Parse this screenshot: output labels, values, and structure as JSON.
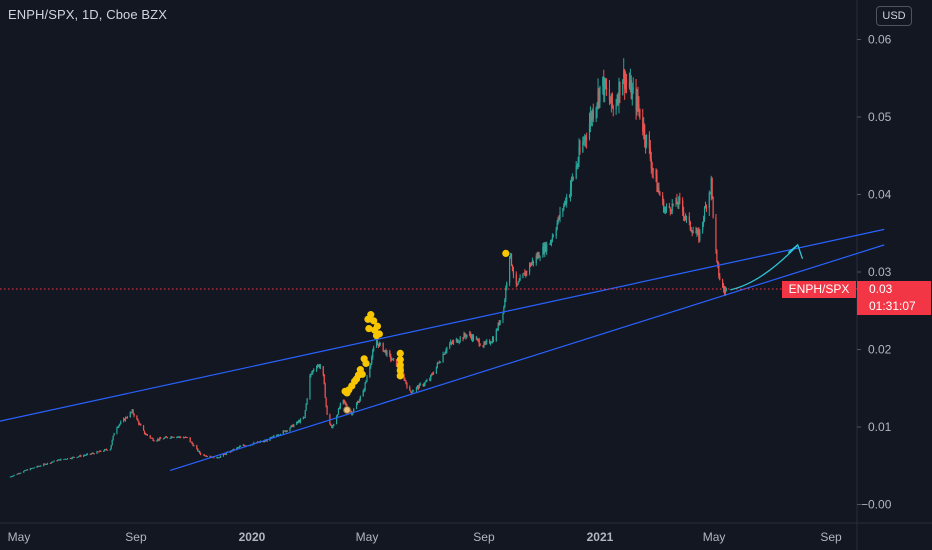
{
  "header": {
    "title": "ENPH/SPX, 1D, Cboe BZX",
    "currency_button": "USD"
  },
  "price_tag": {
    "symbol": "ENPH/SPX",
    "last_value": "0.03",
    "countdown": "01:31:07"
  },
  "colors": {
    "background": "#131722",
    "up": "#26a69a",
    "down": "#ef5350",
    "trendline": "#2962ff",
    "annotation": "#f7c600",
    "last_price": "#f23645"
  },
  "chart_data": {
    "type": "candlestick",
    "symbol": "ENPH/SPX",
    "interval": "1D",
    "exchange": "Cboe BZX",
    "y_ticks": [
      "0.06",
      "0.05",
      "0.04",
      "0.03",
      "0.02",
      "0.01",
      "0.00"
    ],
    "y_tick_values": [
      0.06,
      0.05,
      0.04,
      0.03,
      0.02,
      0.01,
      0.0
    ],
    "ylim": [
      -0.002,
      0.064
    ],
    "x_ticks": [
      {
        "label": "May",
        "date": "2019-05-01"
      },
      {
        "label": "Sep",
        "date": "2019-09-01"
      },
      {
        "label": "2020",
        "date": "2020-01-01"
      },
      {
        "label": "May",
        "date": "2020-05-01"
      },
      {
        "label": "Sep",
        "date": "2020-09-01"
      },
      {
        "label": "2021",
        "date": "2021-01-01"
      },
      {
        "label": "May",
        "date": "2021-05-01"
      },
      {
        "label": "Sep",
        "date": "2021-09-01"
      }
    ],
    "last_price": 0.0278,
    "price_path": [
      [
        "2019-04-20",
        0.0035
      ],
      [
        "2019-05-10",
        0.0045
      ],
      [
        "2019-06-10",
        0.0057
      ],
      [
        "2019-07-15",
        0.0065
      ],
      [
        "2019-08-05",
        0.0072
      ],
      [
        "2019-08-10",
        0.0098
      ],
      [
        "2019-08-28",
        0.012
      ],
      [
        "2019-09-10",
        0.0092
      ],
      [
        "2019-09-20",
        0.0083
      ],
      [
        "2019-10-10",
        0.0088
      ],
      [
        "2019-10-25",
        0.0086
      ],
      [
        "2019-11-08",
        0.0065
      ],
      [
        "2019-11-25",
        0.006
      ],
      [
        "2019-12-20",
        0.0075
      ],
      [
        "2020-01-15",
        0.0082
      ],
      [
        "2020-02-05",
        0.0095
      ],
      [
        "2020-02-25",
        0.0112
      ],
      [
        "2020-03-02",
        0.0165
      ],
      [
        "2020-03-08",
        0.018
      ],
      [
        "2020-03-15",
        0.0178
      ],
      [
        "2020-03-20",
        0.0115
      ],
      [
        "2020-03-25",
        0.0098
      ],
      [
        "2020-04-05",
        0.0135
      ],
      [
        "2020-04-15",
        0.0118
      ],
      [
        "2020-04-27",
        0.0145
      ],
      [
        "2020-05-10",
        0.021
      ],
      [
        "2020-05-15",
        0.0205
      ],
      [
        "2020-05-25",
        0.019
      ],
      [
        "2020-06-05",
        0.0175
      ],
      [
        "2020-06-15",
        0.0145
      ],
      [
        "2020-07-05",
        0.016
      ],
      [
        "2020-07-25",
        0.0205
      ],
      [
        "2020-08-15",
        0.022
      ],
      [
        "2020-09-01",
        0.0205
      ],
      [
        "2020-09-12",
        0.0215
      ],
      [
        "2020-09-22",
        0.0255
      ],
      [
        "2020-09-28",
        0.0325
      ],
      [
        "2020-10-05",
        0.028
      ],
      [
        "2020-10-20",
        0.031
      ],
      [
        "2020-11-10",
        0.034
      ],
      [
        "2020-12-01",
        0.041
      ],
      [
        "2020-12-15",
        0.047
      ],
      [
        "2021-01-03",
        0.0545
      ],
      [
        "2021-01-15",
        0.051
      ],
      [
        "2021-01-25",
        0.0555
      ],
      [
        "2021-02-10",
        0.0515
      ],
      [
        "2021-02-20",
        0.0465
      ],
      [
        "2021-03-01",
        0.0415
      ],
      [
        "2021-03-10",
        0.038
      ],
      [
        "2021-03-25",
        0.039
      ],
      [
        "2021-04-05",
        0.036
      ],
      [
        "2021-04-15",
        0.0345
      ],
      [
        "2021-04-25",
        0.04
      ],
      [
        "2021-04-28",
        0.0415
      ],
      [
        "2021-05-01",
        0.0355
      ],
      [
        "2021-05-04",
        0.031
      ],
      [
        "2021-05-08",
        0.0285
      ],
      [
        "2021-05-12",
        0.0275
      ],
      [
        "2021-05-15",
        0.0278
      ]
    ],
    "trendlines": [
      {
        "name": "upper",
        "from": [
          "2019-01-01",
          0.0081
        ],
        "to": [
          "2021-10-27",
          0.0355
        ]
      },
      {
        "name": "lower",
        "from": [
          "2019-10-07",
          0.0044
        ],
        "to": [
          "2021-10-27",
          0.0335
        ]
      }
    ],
    "last_price_line": {
      "style": "dotted",
      "color": "#f23645"
    },
    "annotations": {
      "dot_markers": [
        [
          "2020-05-02",
          0.0239
        ],
        [
          "2020-05-05",
          0.0245
        ],
        [
          "2020-05-08",
          0.0237
        ],
        [
          "2020-05-03",
          0.0227
        ],
        [
          "2020-05-09",
          0.0225
        ],
        [
          "2020-05-12",
          0.023
        ],
        [
          "2020-05-14",
          0.022
        ],
        [
          "2020-05-11",
          0.0218
        ],
        [
          "2020-04-28",
          0.0188
        ],
        [
          "2020-04-30",
          0.0182
        ],
        [
          "2020-04-22",
          0.0167
        ],
        [
          "2020-04-24",
          0.0174
        ],
        [
          "2020-04-26",
          0.0168
        ],
        [
          "2020-04-18",
          0.0159
        ],
        [
          "2020-04-20",
          0.0162
        ],
        [
          "2020-04-15",
          0.0153
        ],
        [
          "2020-04-12",
          0.0148
        ],
        [
          "2020-04-10",
          0.0144
        ],
        [
          "2020-04-08",
          0.0146
        ],
        [
          "2020-06-05",
          0.0195
        ],
        [
          "2020-06-05",
          0.0187
        ],
        [
          "2020-06-05",
          0.018
        ],
        [
          "2020-06-05",
          0.0173
        ],
        [
          "2020-06-05",
          0.0166
        ],
        [
          "2020-09-24",
          0.0324
        ]
      ],
      "circle_marker": [
        "2020-04-10",
        0.0122
      ],
      "projection_arrow": {
        "points": [
          [
            "2021-05-18",
            0.0277
          ],
          [
            "2021-06-10",
            0.0283
          ],
          [
            "2021-07-05",
            0.0305
          ],
          [
            "2021-07-28",
            0.0335
          ]
        ],
        "arrowhead": [
          [
            "2021-07-18",
            0.0325
          ],
          [
            "2021-07-28",
            0.0335
          ],
          [
            "2021-08-02",
            0.0317
          ]
        ]
      }
    }
  }
}
